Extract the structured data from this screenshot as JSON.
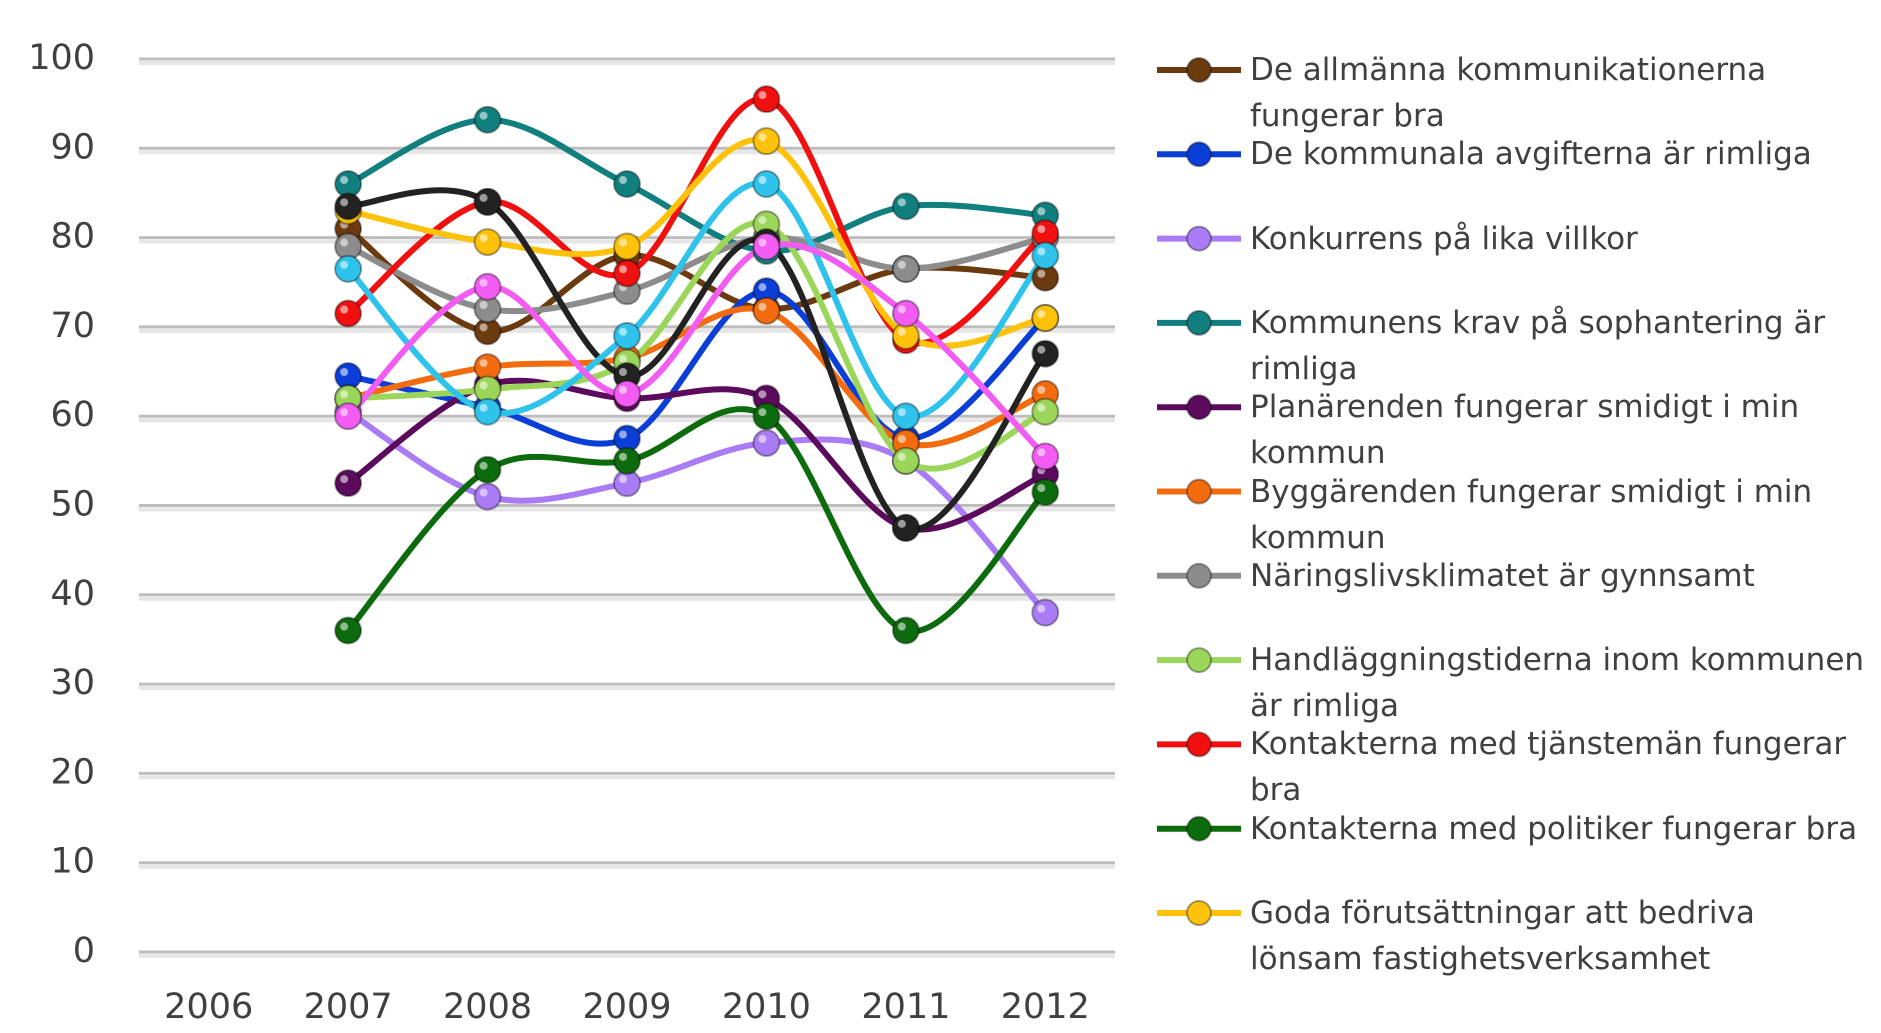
{
  "chart_data": {
    "type": "line",
    "categories": [
      "2006",
      "2007",
      "2008",
      "2009",
      "2010",
      "2011",
      "2012"
    ],
    "ylim": [
      0,
      100
    ],
    "yticks": [
      0,
      10,
      20,
      30,
      40,
      50,
      60,
      70,
      80,
      90,
      100
    ],
    "grid": true,
    "smooth": true,
    "legend": "right",
    "series": [
      {
        "name": "De allmänna kommunikationerna fungerar bra",
        "color": "#6b3a0e",
        "values": [
          null,
          81,
          69.5,
          78,
          72,
          76.5,
          75.5
        ]
      },
      {
        "name": "De kommunala avgifterna är rimliga",
        "color": "#0a3ed6",
        "values": [
          null,
          64.5,
          61,
          57.5,
          74,
          57.5,
          71
        ]
      },
      {
        "name": "Konkurrens på lika villkor",
        "color": "#a97cf5",
        "values": [
          null,
          60.5,
          51,
          52.5,
          57,
          55,
          38
        ]
      },
      {
        "name": "Kommunens krav på sophantering är rimliga",
        "color": "#127f7f",
        "values": [
          null,
          86,
          93.2,
          86,
          78.5,
          83.5,
          82.5
        ]
      },
      {
        "name": "Planärenden fungerar smidigt i min kommun",
        "color": "#5c0a5c",
        "values": [
          null,
          52.5,
          63.5,
          62,
          62,
          47.5,
          53.5
        ]
      },
      {
        "name": "Byggärenden fungerar smidigt i min kommun",
        "color": "#f26b0f",
        "values": [
          null,
          62,
          65.5,
          66.5,
          71.8,
          57,
          62.5
        ]
      },
      {
        "name": "Näringslivsklimatet är gynnsamt",
        "color": "#8c8c8c",
        "values": [
          null,
          79,
          72,
          74,
          80,
          76.5,
          80
        ]
      },
      {
        "name": "Handläggningstiderna inom kommunen är rimliga",
        "color": "#9bd65a",
        "values": [
          null,
          62,
          63,
          66,
          81.5,
          55,
          60.5
        ]
      },
      {
        "name": "Kontakterna med tjänstemän fungerar bra",
        "color": "#f01010",
        "values": [
          null,
          71.5,
          84,
          76,
          95.5,
          68.5,
          80.5
        ]
      },
      {
        "name": "Kontakterna med politiker fungerar bra",
        "color": "#0c6b0c",
        "values": [
          null,
          36,
          54,
          55,
          60,
          36,
          51.5
        ]
      },
      {
        "name": "Goda förutsättningar att bedriva lönsam fastighetsverksamhet",
        "color": "#ffc20a",
        "values": [
          null,
          83,
          79.5,
          79,
          90.8,
          69,
          71
        ]
      },
      {
        "color": "#222222",
        "values": [
          null,
          83.5,
          84,
          64.5,
          79.5,
          47.5,
          67
        ]
      },
      {
        "color": "#2fc3ec",
        "values": [
          null,
          76.5,
          60.5,
          69,
          86,
          60,
          78
        ]
      },
      {
        "color": "#f25cf2",
        "values": [
          null,
          60,
          74.5,
          62.5,
          79,
          71.5,
          55.5
        ]
      }
    ]
  }
}
